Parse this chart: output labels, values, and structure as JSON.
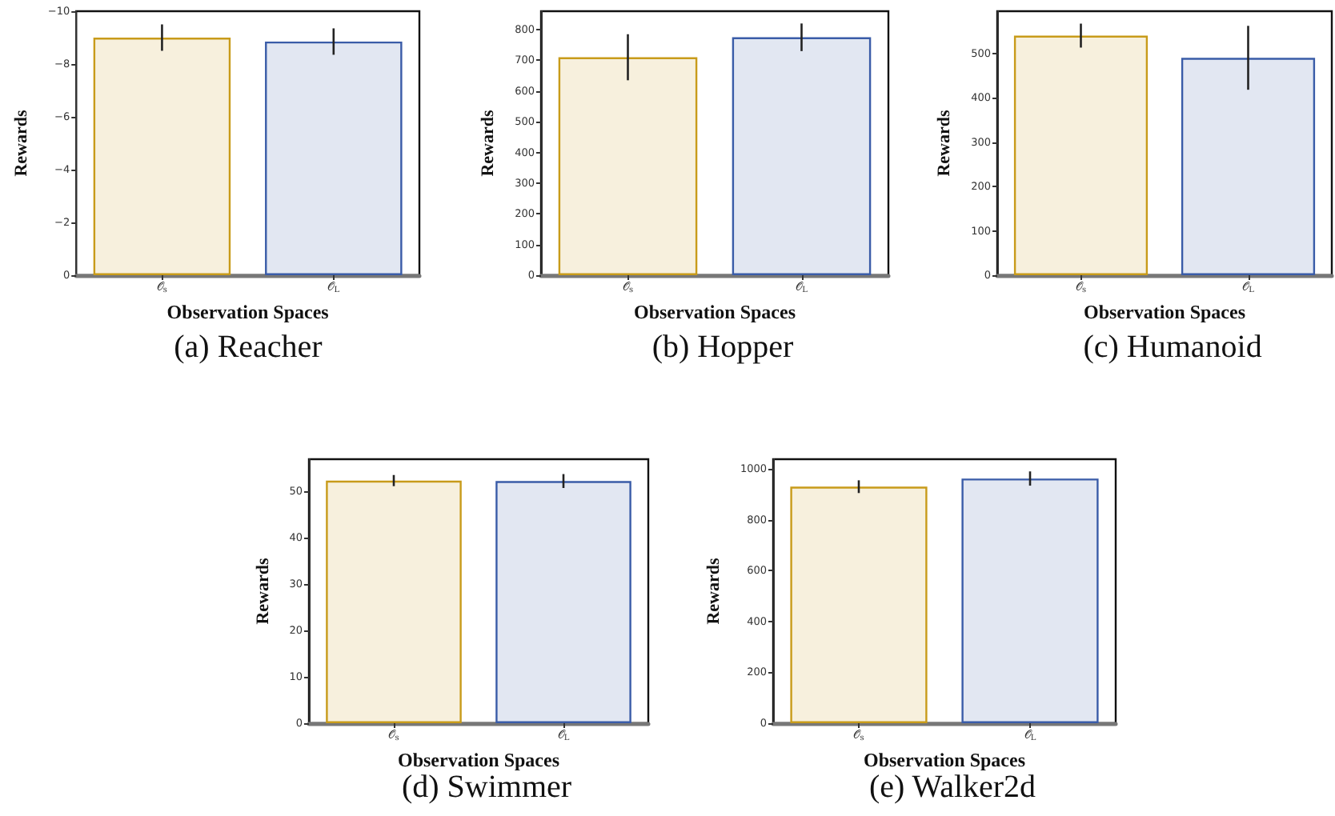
{
  "chart_data": [
    {
      "type": "bar",
      "title": "(a) Reacher",
      "xlabel": "Observation Spaces",
      "ylabel": "Rewards",
      "categories": [
        "𝒪$_{s}$",
        "𝒪$_{L}$"
      ],
      "values": [
        -9.0,
        -8.85
      ],
      "errors": [
        0.5,
        0.5
      ],
      "colors": [
        "#c89b1a",
        "#3a5ca8"
      ],
      "ylim": [
        0,
        -10
      ],
      "yticks": [
        {
          "value": 0,
          "label": "0"
        },
        {
          "value": -2,
          "label": "−2"
        },
        {
          "value": -4,
          "label": "−4"
        },
        {
          "value": -6,
          "label": "−6"
        },
        {
          "value": -8,
          "label": "−8"
        },
        {
          "value": -10,
          "label": "−10"
        }
      ],
      "grid": false
    },
    {
      "type": "bar",
      "title": "(b) Hopper",
      "xlabel": "Observation Spaces",
      "ylabel": "Rewards",
      "categories": [
        "𝒪$_{s}$",
        "𝒪$_{L}$"
      ],
      "values": [
        710,
        775
      ],
      "errors": [
        75,
        45
      ],
      "colors": [
        "#c89b1a",
        "#3a5ca8"
      ],
      "ylim": [
        0,
        860
      ],
      "yticks": [
        0,
        100,
        200,
        300,
        400,
        500,
        600,
        700,
        800
      ],
      "grid": false
    },
    {
      "type": "bar",
      "title": "(c) Humanoid",
      "xlabel": "Observation Spaces",
      "ylabel": "Rewards",
      "categories": [
        "𝒪$_{s}$",
        "𝒪$_{L}$"
      ],
      "values": [
        540,
        490
      ],
      "errors": [
        27,
        72
      ],
      "colors": [
        "#c89b1a",
        "#3a5ca8"
      ],
      "ylim": [
        0,
        595
      ],
      "yticks": [
        0,
        100,
        200,
        300,
        400,
        500
      ],
      "grid": false
    },
    {
      "type": "bar",
      "title": "(d) Swimmer",
      "xlabel": "Observation Spaces",
      "ylabel": "Rewards",
      "categories": [
        "𝒪$_{s}$",
        "𝒪$_{L}$"
      ],
      "values": [
        52.2,
        52.1
      ],
      "errors": [
        1.2,
        1.5
      ],
      "colors": [
        "#c89b1a",
        "#3a5ca8"
      ],
      "ylim": [
        0,
        56.8
      ],
      "yticks": [
        0,
        10,
        20,
        30,
        40,
        50
      ],
      "grid": false
    },
    {
      "type": "bar",
      "title": "(e) Walker2d",
      "xlabel": "Observation Spaces",
      "ylabel": "Rewards",
      "categories": [
        "𝒪$_{s}$",
        "𝒪$_{L}$"
      ],
      "values": [
        930,
        962
      ],
      "errors": [
        25,
        28
      ],
      "colors": [
        "#c89b1a",
        "#3a5ca8"
      ],
      "ylim": [
        0,
        1038
      ],
      "yticks": [
        0,
        200,
        400,
        600,
        800,
        1000
      ],
      "grid": false
    }
  ]
}
